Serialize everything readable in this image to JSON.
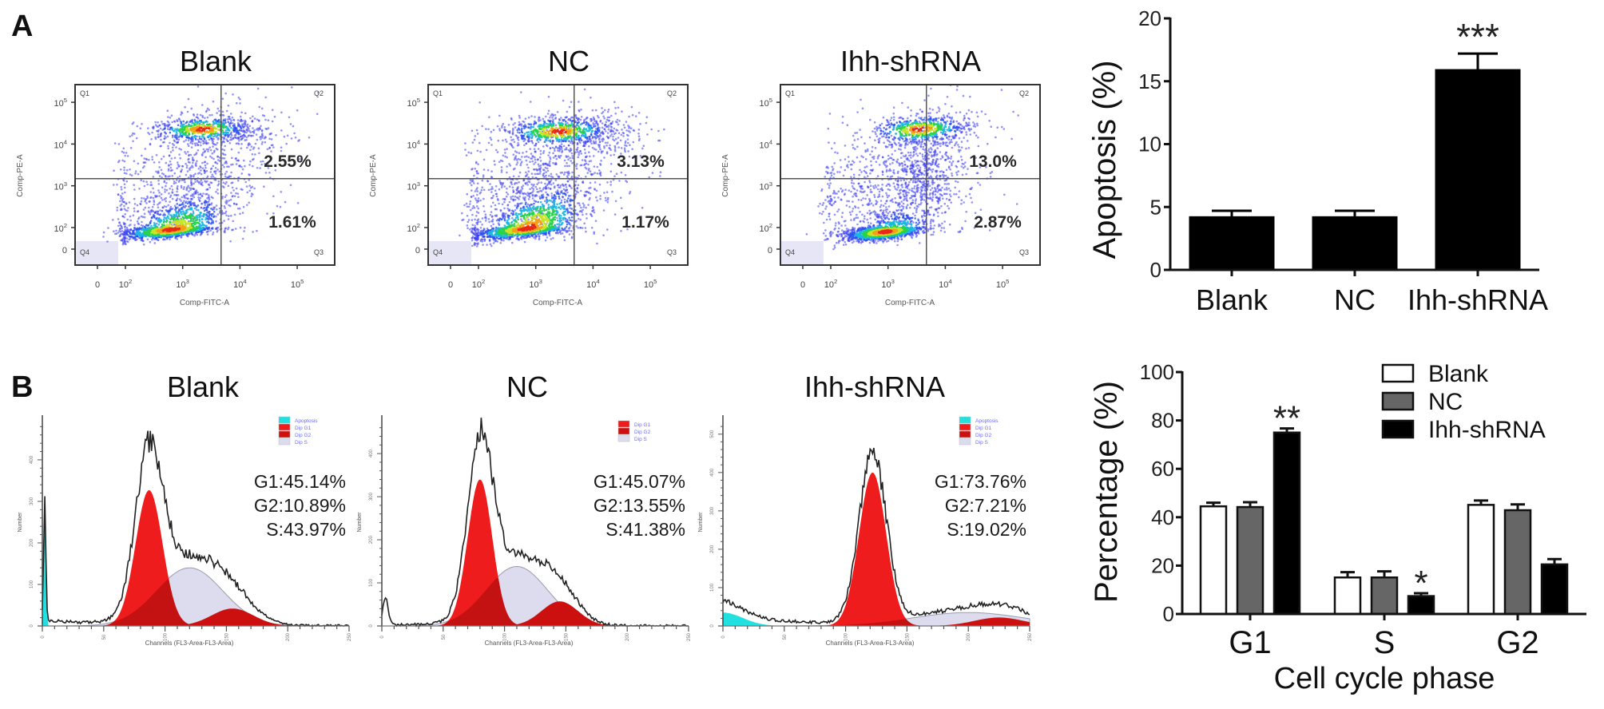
{
  "panel_labels": {
    "a": "A",
    "b": "B"
  },
  "chart_data": [
    {
      "type": "scatter",
      "subtype": "flow-cytometry-density",
      "panel": "A",
      "xlabel": "Comp-FITC-A",
      "ylabel": "Comp-PE-A",
      "x_ticks": [
        "0",
        "10^2",
        "10^3",
        "10^4",
        "10^5"
      ],
      "y_ticks": [
        "0",
        "10^2",
        "10^3",
        "10^4",
        "10^5"
      ],
      "quadrant_labels": [
        "Q1",
        "Q2",
        "Q3",
        "Q4"
      ],
      "gate_x_log": 3.67,
      "gate_y_log": 3.17,
      "plots": [
        {
          "title": "Blank",
          "q2_percent": "2.55%",
          "q3_percent": "1.61%",
          "populations": [
            {
              "center": [
                3.0,
                3.0
              ],
              "spread": [
                0.75,
                0.85
              ],
              "corr": 0.3,
              "events": 900,
              "intensity": 0
            },
            {
              "center": [
                2.8,
                1.8
              ],
              "spread": [
                0.42,
                0.45
              ],
              "corr": 0.55,
              "events": 1300,
              "intensity": 1
            },
            {
              "center": [
                3.35,
                4.35
              ],
              "spread": [
                0.45,
                0.16
              ],
              "corr": 0.1,
              "events": 600,
              "intensity": 0.8
            },
            {
              "center": [
                4.1,
                4.25
              ],
              "spread": [
                0.45,
                0.3
              ],
              "corr": 0.0,
              "events": 160,
              "intensity": 0
            }
          ]
        },
        {
          "title": "NC",
          "q2_percent": "3.13%",
          "q3_percent": "1.17%",
          "populations": [
            {
              "center": [
                3.0,
                3.0
              ],
              "spread": [
                0.75,
                0.85
              ],
              "corr": 0.3,
              "events": 950,
              "intensity": 0
            },
            {
              "center": [
                2.85,
                1.9
              ],
              "spread": [
                0.45,
                0.5
              ],
              "corr": 0.6,
              "events": 1300,
              "intensity": 1
            },
            {
              "center": [
                3.4,
                4.3
              ],
              "spread": [
                0.5,
                0.18
              ],
              "corr": 0.1,
              "events": 650,
              "intensity": 0.8
            },
            {
              "center": [
                4.1,
                4.2
              ],
              "spread": [
                0.45,
                0.35
              ],
              "corr": 0.0,
              "events": 200,
              "intensity": 0
            }
          ]
        },
        {
          "title": "Ihh-shRNA",
          "q2_percent": "13.0%",
          "q3_percent": "2.87%",
          "populations": [
            {
              "center": [
                3.1,
                3.0
              ],
              "spread": [
                0.75,
                0.85
              ],
              "corr": 0.3,
              "events": 900,
              "intensity": 0
            },
            {
              "center": [
                2.95,
                1.6
              ],
              "spread": [
                0.35,
                0.4
              ],
              "corr": 0.5,
              "events": 1300,
              "intensity": 1
            },
            {
              "center": [
                3.55,
                4.35
              ],
              "spread": [
                0.45,
                0.18
              ],
              "corr": 0.2,
              "events": 550,
              "intensity": 0.8
            },
            {
              "center": [
                3.7,
                3.4
              ],
              "spread": [
                0.35,
                0.75
              ],
              "corr": 0.3,
              "events": 450,
              "intensity": 0
            }
          ]
        }
      ]
    },
    {
      "type": "bar",
      "panel": "A",
      "title": "",
      "xlabel": "",
      "ylabel": "Apoptosis (%)",
      "ylim": [
        0,
        20
      ],
      "y_ticks": [
        "0",
        "5",
        "10",
        "15",
        "20"
      ],
      "categories": [
        "Blank",
        "NC",
        "Ihh-shRNA"
      ],
      "values": [
        4.2,
        4.2,
        15.9
      ],
      "errors": [
        0.5,
        0.5,
        1.3
      ],
      "bar_color": "#000000",
      "annotations": [
        {
          "category": "Ihh-shRNA",
          "text": "***"
        }
      ]
    },
    {
      "type": "area",
      "subtype": "cell-cycle-histogram",
      "panel": "B",
      "xlabel": "Channels (FL3-Area-FL3-Area)",
      "ylabel": "Number",
      "xlim": [
        0,
        250
      ],
      "x_ticks": [
        "0",
        "50",
        "100",
        "150",
        "200",
        "250"
      ],
      "colors": {
        "apoptosis": "#22e0e0",
        "g1": "#ee1c1c",
        "g2": "#cc1010",
        "s": "#dcdcee",
        "envelope": "#222222",
        "legend_text": "#6a6aff"
      },
      "plots": [
        {
          "title": "Blank",
          "ymax": 496,
          "y_ticks": [
            "0",
            "100",
            "200",
            "300",
            "400"
          ],
          "legend": [
            "Apoptosis",
            "Dip G1",
            "Dip G2",
            "Dip S"
          ],
          "stats": [
            "G1:45.14%",
            "G2:10.89%",
            "S:43.97%"
          ],
          "components": {
            "apoptosis": [
              2,
              0.9,
              300
            ],
            "g1": [
              87,
              11,
              327
            ],
            "g2": [
              155,
              17,
              42
            ],
            "s": [
              120,
              27,
              140
            ]
          },
          "debris": 14
        },
        {
          "title": "NC",
          "ymax": 478,
          "y_ticks": [
            "0",
            "100",
            "200",
            "300",
            "400"
          ],
          "legend": [
            "Dip G1",
            "Dip G2",
            "Dip S"
          ],
          "stats": [
            "G1:45.07%",
            "G2:13.55%",
            "S:41.38%"
          ],
          "components": {
            "apoptosis": [
              3,
              2.2,
              60
            ],
            "g1": [
              80,
              10,
              340
            ],
            "g2": [
              145,
              15,
              57
            ],
            "s": [
              110,
              25,
              138
            ]
          },
          "debris": 4
        },
        {
          "title": "Ihh-shRNA",
          "ymax": 537,
          "y_ticks": [
            "0",
            "100",
            "200",
            "300",
            "400",
            "500"
          ],
          "legend": [
            "Apoptosis",
            "Dip G1",
            "Dip G2",
            "Dip S"
          ],
          "stats": [
            "G1:73.76%",
            "G2:7.21%",
            "S:19.02%"
          ],
          "components": {
            "apoptosis": [
              0,
              16,
              35
            ],
            "g1": [
              122,
              11,
              400
            ],
            "g2": [
              225,
              20,
              22
            ],
            "s": [
              200,
              45,
              35
            ]
          },
          "debris": 30
        }
      ]
    },
    {
      "type": "bar",
      "subtype": "grouped",
      "panel": "B",
      "xlabel": "Cell cycle phase",
      "ylabel": "Percentage (%)",
      "ylim": [
        0,
        100
      ],
      "y_ticks": [
        "0",
        "20",
        "40",
        "60",
        "80",
        "100"
      ],
      "categories": [
        "G1",
        "S",
        "G2"
      ],
      "legend_position": "top-right",
      "series": [
        {
          "name": "Blank",
          "color": "#ffffff",
          "values": [
            44.5,
            15.1,
            45.1
          ],
          "errors": [
            1.5,
            2.2,
            1.8
          ]
        },
        {
          "name": "NC",
          "color": "#666666",
          "values": [
            44.2,
            15.1,
            42.9
          ],
          "errors": [
            2.0,
            2.5,
            2.4
          ]
        },
        {
          "name": "Ihh-shRNA",
          "color": "#000000",
          "values": [
            75.0,
            7.4,
            20.5
          ],
          "errors": [
            1.7,
            1.2,
            2.2
          ]
        }
      ],
      "annotations": [
        {
          "category": "G1",
          "series": "Ihh-shRNA",
          "text": "**"
        },
        {
          "category": "S",
          "series": "Ihh-shRNA",
          "text": "*"
        }
      ]
    }
  ]
}
